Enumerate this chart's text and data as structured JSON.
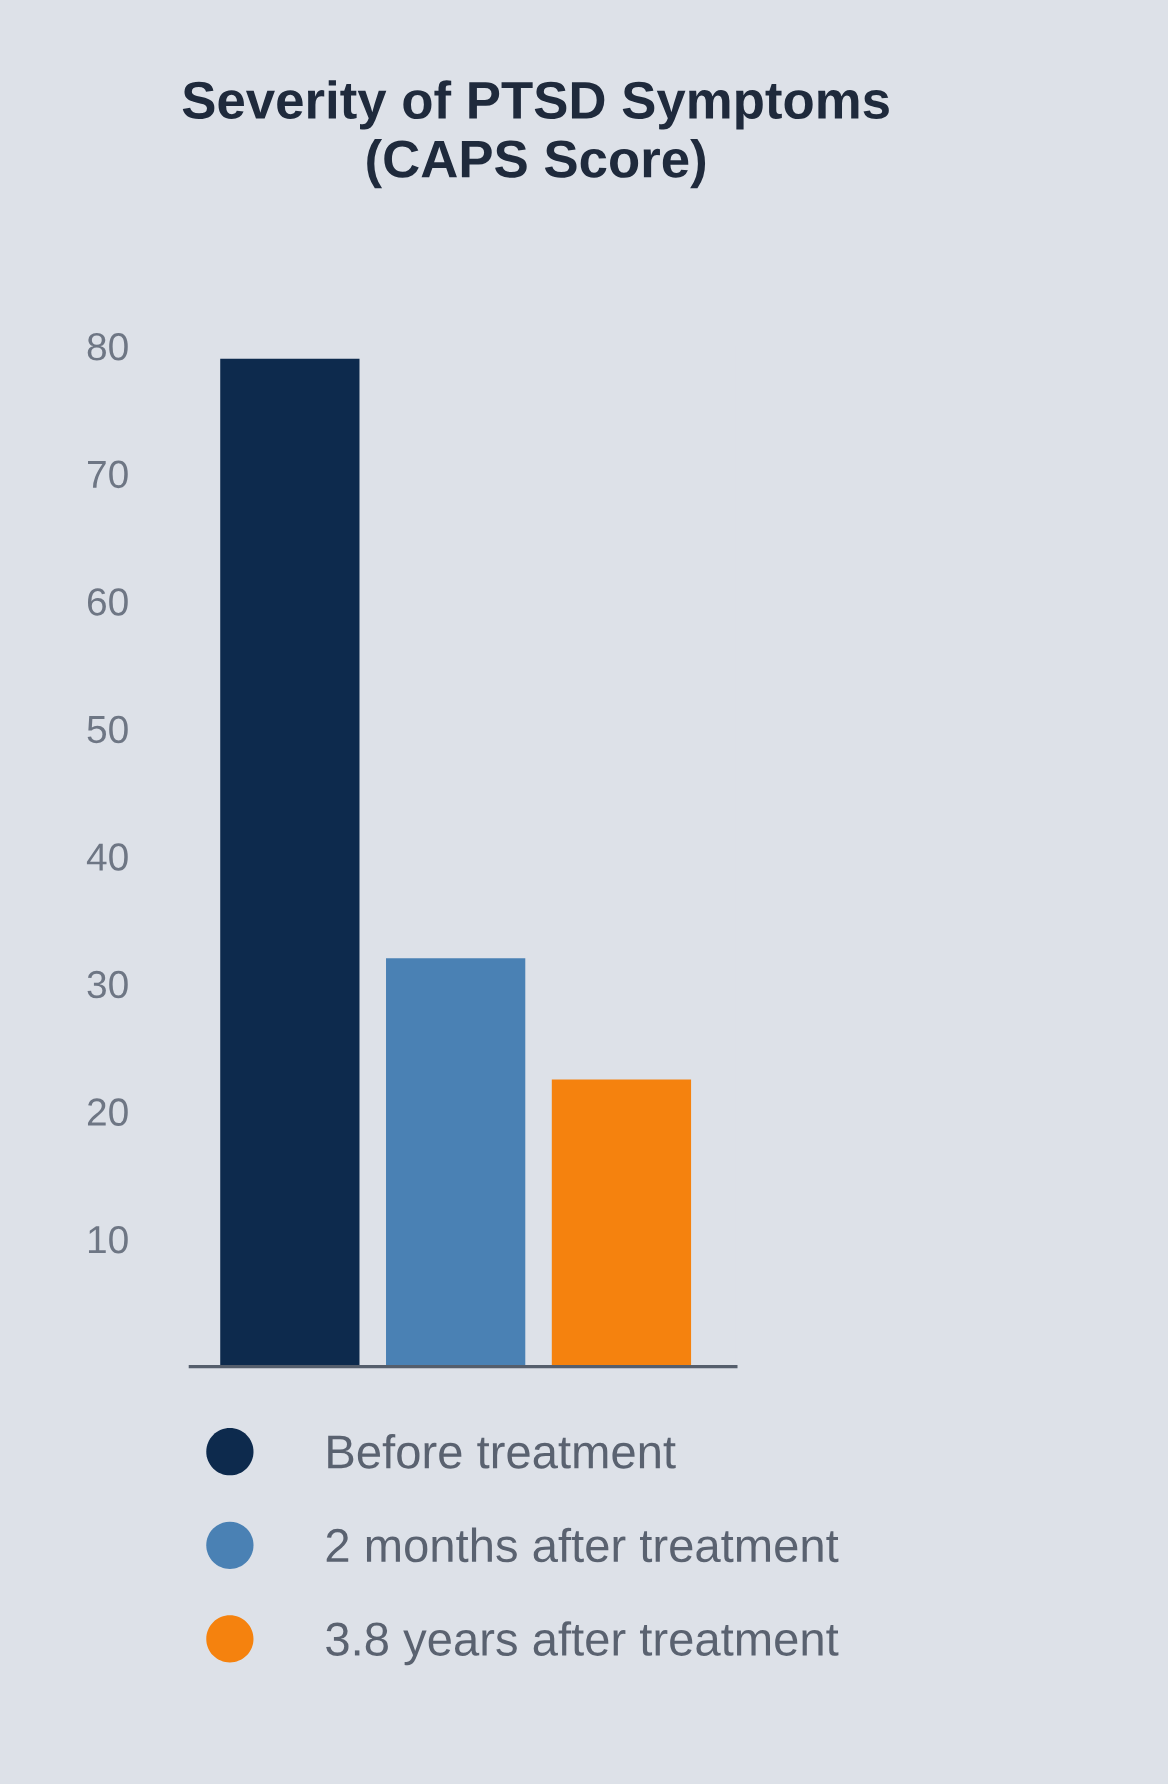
{
  "chart_data": {
    "type": "bar",
    "title": "Severity of PTSD Symptoms\n(CAPS Score)",
    "categories": [
      null,
      null,
      null
    ],
    "series": [
      {
        "name": "Before treatment",
        "color": "#0d2a4d",
        "values": [
          79,
          null,
          null
        ]
      },
      {
        "name": "2 months after treatment",
        "color": "#4a81b4",
        "values": [
          null,
          32,
          null
        ]
      },
      {
        "name": "3.8 years after treatment",
        "color": "#f5820e",
        "values": [
          null,
          null,
          22.5
        ]
      }
    ],
    "ylim": [
      0,
      80
    ],
    "yticks": [
      10,
      20,
      30,
      40,
      50,
      60,
      70,
      80
    ],
    "grid": false,
    "legend": "bottom"
  }
}
